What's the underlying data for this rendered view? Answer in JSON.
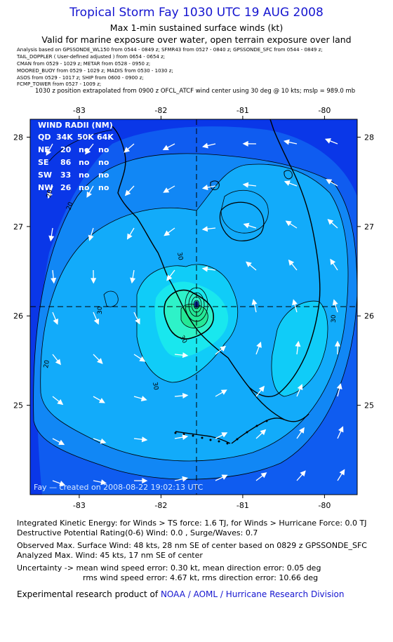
{
  "header": {
    "title": "Tropical Storm Fay 1030 UTC 19 AUG 2008",
    "subtitle": "Max 1-min sustained surface winds (kt)",
    "valid": "Valid for marine exposure over water, open terrain exposure over land"
  },
  "sources": [
    "Analysis based on  GPSSONDE_WL150 from 0544 - 0849 z;  SFMR43 from 0527 - 0840 z;  GPSSONDE_SFC from 0544 - 0849 z;",
    "TAIL_DOPPLER  ( User-defined adjusted ) from 0654 - 0654 z;",
    "CMAN from 0529 - 1029 z;   METAR from 0528 - 0950 z;",
    "MOORED_BUOY from 0529 - 1029 z;   MADIS from 0530 - 1030 z;",
    "ASOS from 0529 - 1017 z;   SHIP from 0600 - 0900 z;",
    "FCMP_TOWER from 0527 - 1009 z;"
  ],
  "position_note": "1030 z position extrapolated from 0900 z OFCL_ATCF wind center using 30 deg @ 10 kts; mslp = 989.0 mb",
  "map": {
    "lon_ticks": [
      -83,
      -82,
      -81,
      -80
    ],
    "lat_ticks": [
      28,
      27,
      26,
      25
    ],
    "lon_range": [
      -83.6,
      -79.6
    ],
    "lat_range": [
      24.0,
      28.2
    ],
    "center": {
      "lon": -81.55,
      "lat": 26.12
    },
    "contour_labels": [
      "20",
      "20",
      "20",
      "30",
      "30",
      "30",
      "30",
      "30"
    ],
    "colors": {
      "band_10": "#0a37e8",
      "band_15": "#0f5cf0",
      "band_20": "#1187f5",
      "band_25": "#12abfa",
      "band_30": "#10ccf8",
      "band_35": "#19e7ee",
      "band_40": "#2ef2c8",
      "band_45": "#24e896",
      "center_dot": "#0a1a90"
    },
    "credit": "Fay — created on 2008-08-22 19:02:13 UTC"
  },
  "wind_radii": {
    "title": "WIND RADII (NM)",
    "header": [
      "QD",
      "34K",
      "50K",
      "64K"
    ],
    "rows": [
      [
        "NE",
        "20",
        "no",
        "no"
      ],
      [
        "SE",
        "86",
        "no",
        "no"
      ],
      [
        "SW",
        "33",
        "no",
        "no"
      ],
      [
        "NW",
        "26",
        "no",
        "no"
      ]
    ]
  },
  "footer": {
    "ike": "Integrated Kinetic Energy:  for Winds > TS force: 1.6 TJ,  for Winds > Hurricane Force: 0.0 TJ",
    "dpr": "Destructive Potential Rating(0-6)   Wind: 0.0 , Surge/Waves: 0.7",
    "observed": "Observed Max. Surface Wind: 48 kts, 28 nm SE of center based on 0829 z GPSSONDE_SFC",
    "analyzed": "Analyzed Max. Wind: 45 kts, 17 nm SE of center",
    "uncert1": "Uncertainty -> mean wind speed error: 0.30 kt,   mean direction error: 0.05 deg",
    "uncert2": "rms wind speed error: 4.67 kt,   rms direction error: 10.66 deg",
    "credit_prefix": "Experimental research product of",
    "credit_link": "NOAA / AOML / Hurricane Research Division"
  }
}
